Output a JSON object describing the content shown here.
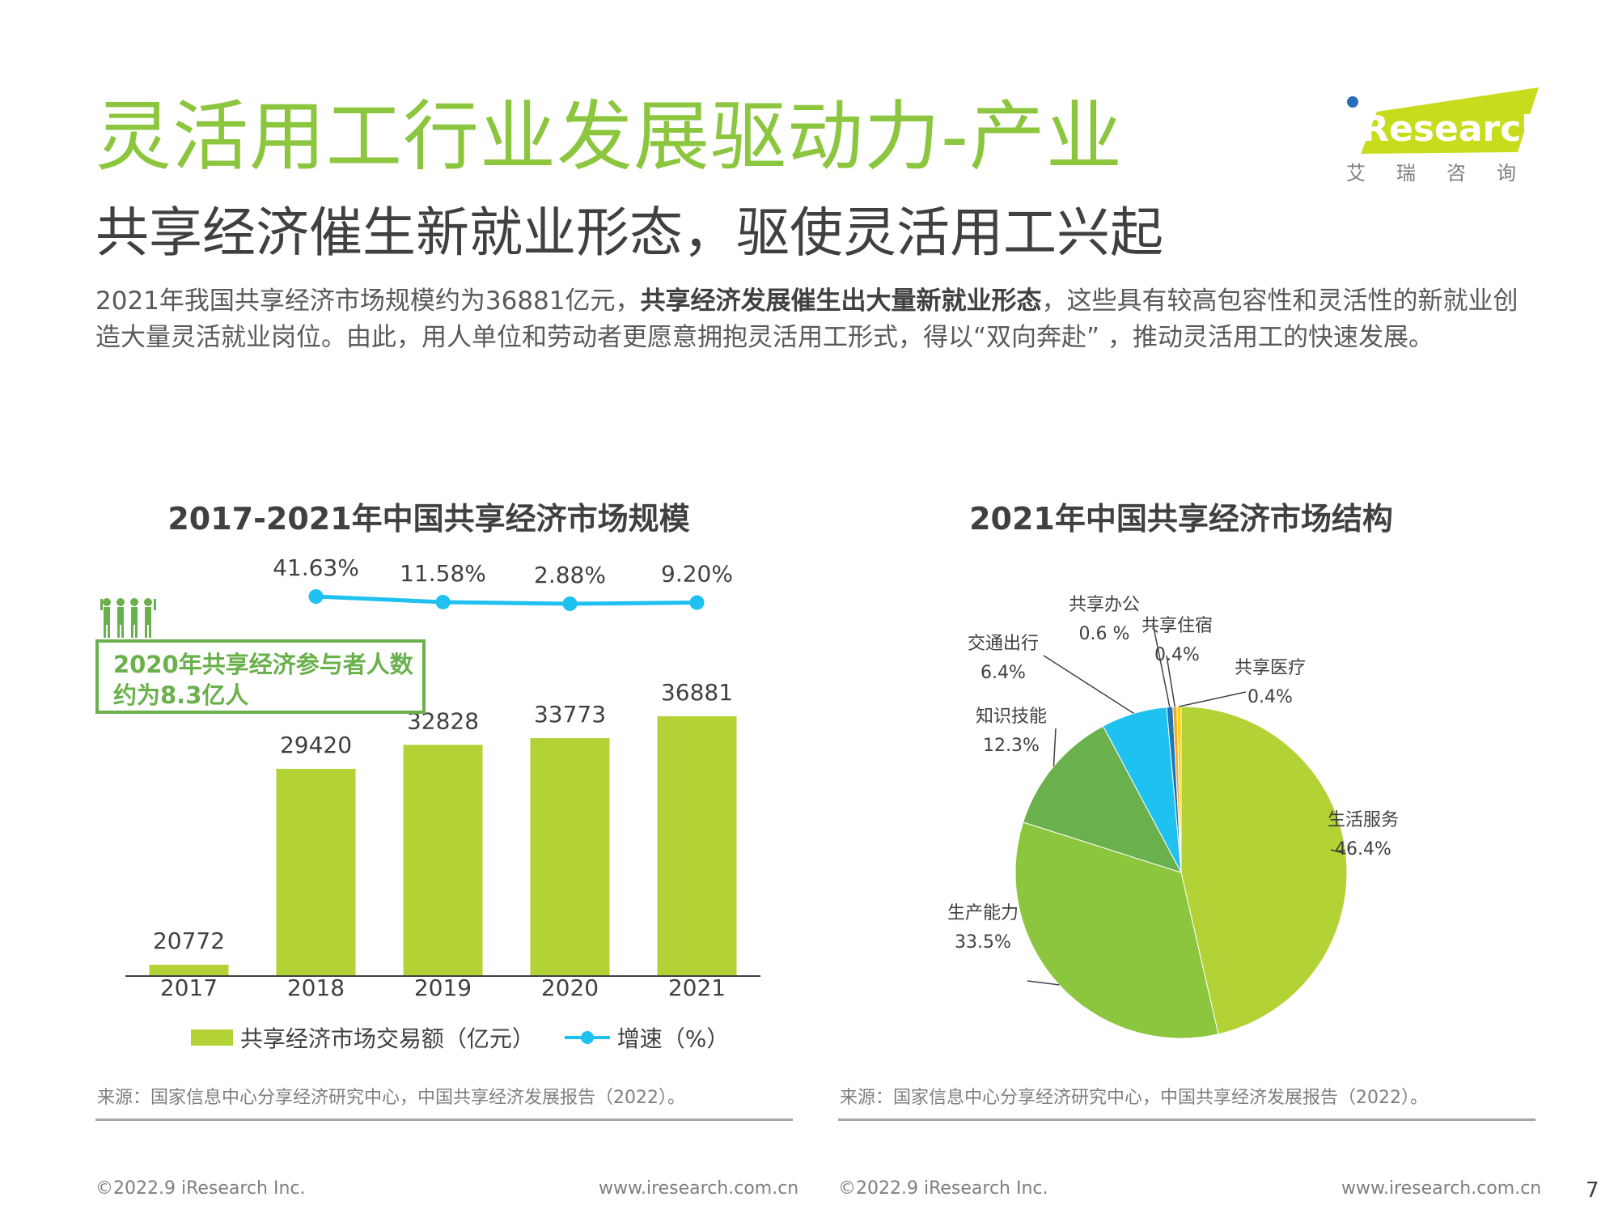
{
  "page": {
    "title": "灵活用工行业发展驱动力-产业",
    "subtitle": "共享经济催生新就业形态，驱使灵活用工兴起",
    "intro_pre": "2021年我国共享经济市场规模约为36881亿元，",
    "intro_bold": "共享经济发展催生出大量新就业形态",
    "intro_post": "，这些具有较高包容性和灵活性的新就业创造大量灵活就业岗位。由此，用人单位和劳动者更愿意拥抱灵活用工形式，得以“双向奔赴” ，推动灵活用工的快速发展。"
  },
  "logo": {
    "text": "iResearch",
    "cn": "艾瑞咨询"
  },
  "bar_chart": {
    "callout_line1": "2020年共享经济参与者人数",
    "callout_line2": "约为8.3亿人",
    "legend_bar": "共享经济市场交易额（亿元）",
    "legend_line": "增速（%）",
    "source": "来源：国家信息中心分享经济研究中心，中国共享经济发展报告（2022）。"
  },
  "pie_chart": {
    "source": "来源：国家信息中心分享经济研究中心，中国共享经济发展报告（2022）。"
  },
  "footer": {
    "copyright_left": "©2022.9 iResearch Inc.",
    "url_left": "www.iresearch.com.cn",
    "copyright_right": "©2022.9 iResearch Inc.",
    "url_right": "www.iresearch.com.cn",
    "page_number": "7"
  },
  "colors": {
    "title_green": "#8cc63f",
    "bar_green": "#b2d235",
    "line_blue": "#1ec1f0"
  },
  "chart_data": [
    {
      "type": "bar",
      "title": "2017-2021年中国共享经济市场规模",
      "categories": [
        "2017",
        "2018",
        "2019",
        "2020",
        "2021"
      ],
      "series": [
        {
          "name": "共享经济市场交易额（亿元）",
          "type": "bar",
          "values": [
            20772,
            29420,
            32828,
            33773,
            36881
          ],
          "labels": [
            "20772",
            "29420",
            "32828",
            "33773",
            "36881"
          ]
        },
        {
          "name": "增速（%）",
          "type": "line",
          "x": [
            "2018",
            "2019",
            "2020",
            "2021"
          ],
          "values": [
            41.63,
            11.58,
            2.88,
            9.2
          ],
          "labels": [
            "41.63%",
            "11.58%",
            "2.88%",
            "9.20%"
          ]
        }
      ]
    },
    {
      "type": "pie",
      "title": "2021年中国共享经济市场结构",
      "slices": [
        {
          "name": "生活服务",
          "value": 46.4,
          "label": "46.4%",
          "color": "#b2d235"
        },
        {
          "name": "生产能力",
          "value": 33.5,
          "label": "33.5%",
          "color": "#8cc63f"
        },
        {
          "name": "知识技能",
          "value": 12.3,
          "label": "12.3%",
          "color": "#6ab04c"
        },
        {
          "name": "交通出行",
          "value": 6.4,
          "label": "6.4%",
          "color": "#1ec1f0"
        },
        {
          "name": "共享办公",
          "value": 0.6,
          "label": "0.6 %",
          "color": "#1f77b4"
        },
        {
          "name": "共享住宿",
          "value": 0.4,
          "label": "0.4%",
          "color": "#f5a623"
        },
        {
          "name": "共享医疗",
          "value": 0.4,
          "label": "0.4%",
          "color": "#ffd400"
        }
      ]
    }
  ]
}
